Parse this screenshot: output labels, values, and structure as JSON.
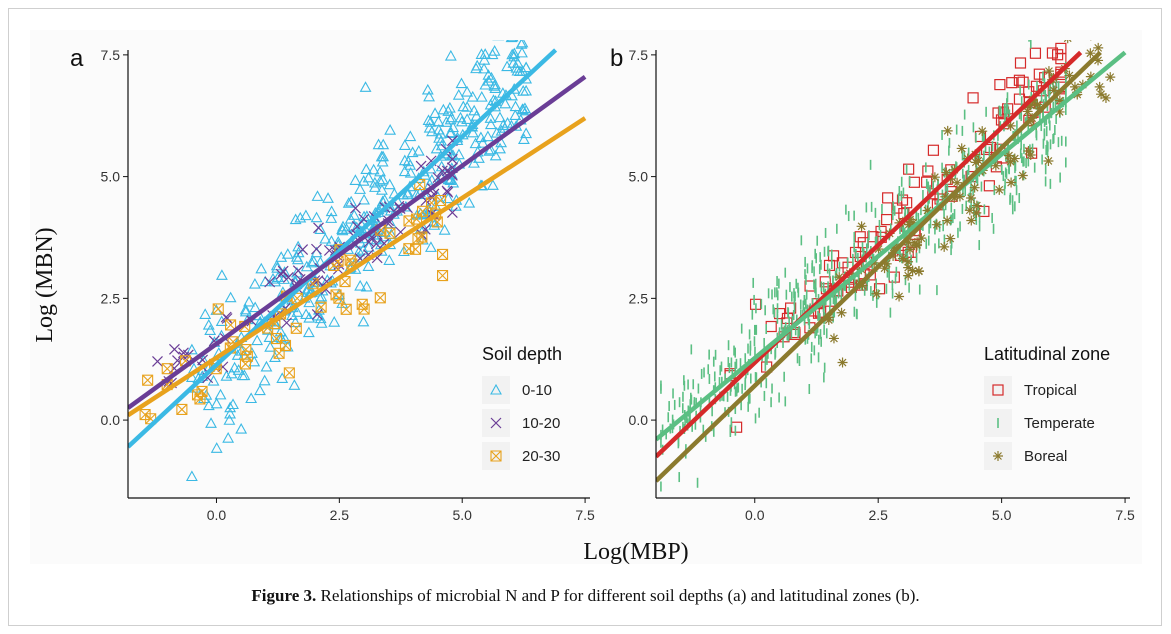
{
  "figure": {
    "caption_label": "Figure 3.",
    "caption_text": " Relationships of microbial N and P for different soil depths (a) and latitudinal zones (b).",
    "shared_ylabel": "Log (MBN)",
    "shared_xlabel": "Log(MBP)"
  },
  "chart_data": [
    {
      "type": "scatter",
      "panel": "a",
      "xlim": [
        -1.8,
        7.6
      ],
      "ylim": [
        -1.6,
        7.6
      ],
      "x_ticks": [
        "0.0",
        "2.5",
        "5.0",
        "7.5"
      ],
      "y_ticks": [
        "0.0",
        "2.5",
        "5.0",
        "7.5"
      ],
      "grid": false,
      "legend_title": "Soil depth",
      "legend_placement": "bottom-right",
      "series": [
        {
          "name": "0-10",
          "color": "#3bb9e4",
          "marker": "triangle",
          "fit": [
            [
              -1.8,
              -0.55
            ],
            [
              6.9,
              7.6
            ]
          ],
          "density": 420,
          "points_hint": {
            "x_range": [
              -0.5,
              6.3
            ],
            "spread": 0.75
          }
        },
        {
          "name": "10-20",
          "color": "#6a3d96",
          "marker": "cross",
          "fit": [
            [
              -1.8,
              0.25
            ],
            [
              7.5,
              7.05
            ]
          ],
          "density": 90,
          "points_hint": {
            "x_range": [
              -1.2,
              4.8
            ],
            "spread": 0.45
          }
        },
        {
          "name": "20-30",
          "color": "#e8a21d",
          "marker": "boxx",
          "fit": [
            [
              -1.8,
              0.1
            ],
            [
              7.5,
              6.2
            ]
          ],
          "density": 60,
          "points_hint": {
            "x_range": [
              -1.6,
              4.6
            ],
            "spread": 0.45
          }
        }
      ]
    },
    {
      "type": "scatter",
      "panel": "b",
      "xlim": [
        -2.0,
        7.6
      ],
      "ylim": [
        -1.6,
        7.6
      ],
      "x_ticks": [
        "0.0",
        "2.5",
        "5.0",
        "7.5"
      ],
      "y_ticks": [
        "0.0",
        "2.5",
        "5.0",
        "7.5"
      ],
      "grid": false,
      "legend_title": "Latitudinal zone",
      "legend_placement": "bottom-right",
      "series": [
        {
          "name": "Tropical",
          "color": "#d52a2a",
          "marker": "square",
          "fit": [
            [
              -2.0,
              -0.75
            ],
            [
              6.6,
              7.55
            ]
          ],
          "density": 110,
          "points_hint": {
            "x_range": [
              -0.5,
              6.2
            ],
            "spread": 0.5
          }
        },
        {
          "name": "Temperate",
          "color": "#5bbf83",
          "marker": "vbar",
          "fit": [
            [
              -2.0,
              -0.4
            ],
            [
              7.5,
              7.55
            ]
          ],
          "density": 700,
          "points_hint": {
            "x_range": [
              -1.9,
              6.3
            ],
            "spread": 0.6
          }
        },
        {
          "name": "Boreal",
          "color": "#8b7a2e",
          "marker": "asterisk",
          "fit": [
            [
              -2.0,
              -1.25
            ],
            [
              7.0,
              7.55
            ]
          ],
          "density": 110,
          "points_hint": {
            "x_range": [
              1.5,
              7.2
            ],
            "spread": 0.55
          }
        }
      ]
    }
  ]
}
